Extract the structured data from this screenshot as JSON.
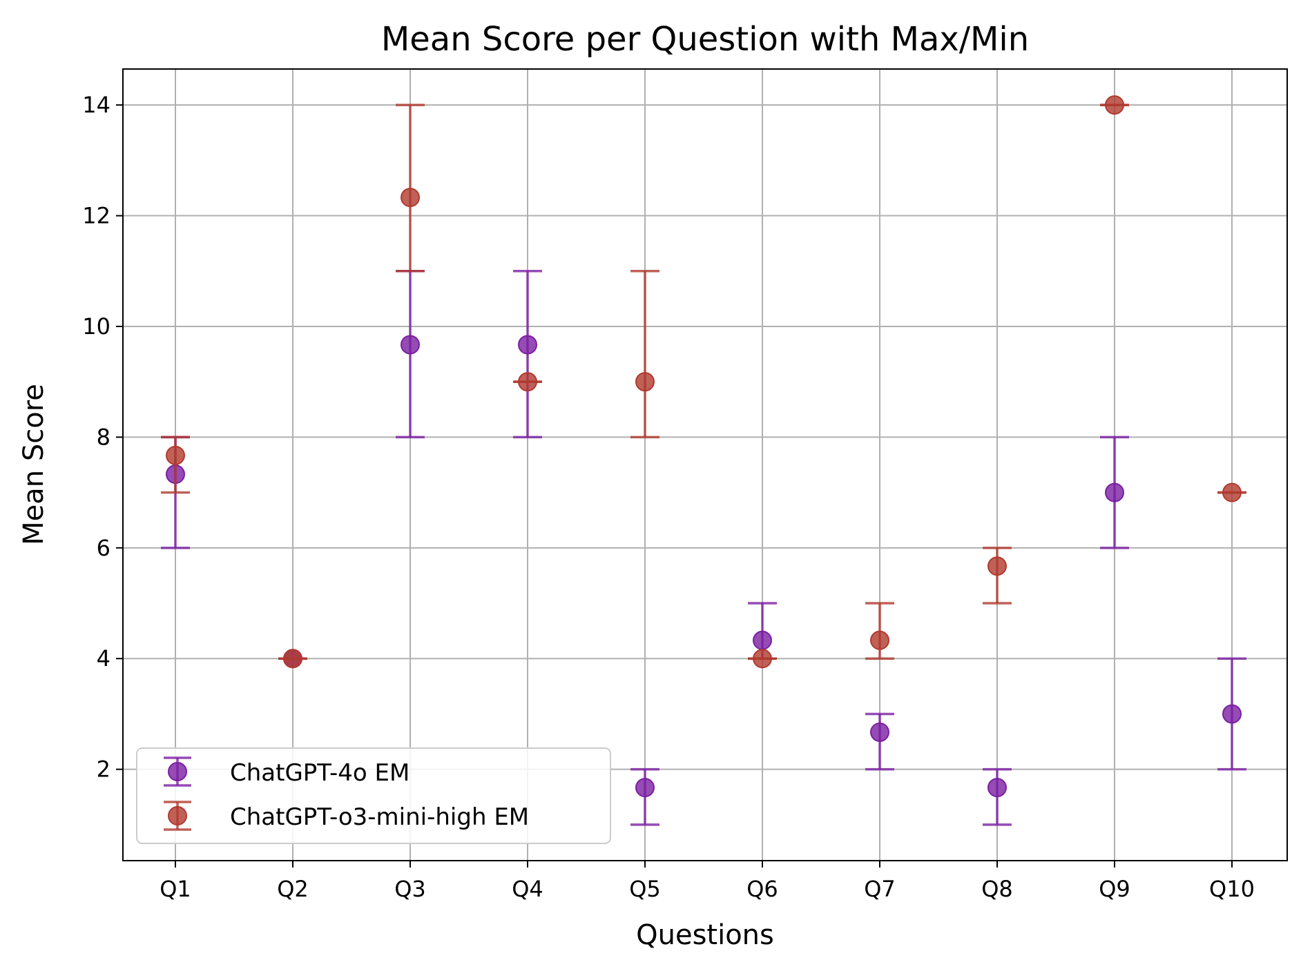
{
  "chart_data": {
    "type": "scatter",
    "title": "Mean Score per Question with Max/Min",
    "xlabel": "Questions",
    "ylabel": "Mean Score",
    "categories": [
      "Q1",
      "Q2",
      "Q3",
      "Q4",
      "Q5",
      "Q6",
      "Q7",
      "Q8",
      "Q9",
      "Q10"
    ],
    "ylim": [
      0.35,
      14.65
    ],
    "yticks": [
      2,
      4,
      6,
      8,
      10,
      12,
      14
    ],
    "ytick_labels": [
      "2",
      "4",
      "6",
      "8",
      "10",
      "12",
      "14"
    ],
    "grid": true,
    "legend_position": "lower-left",
    "series": [
      {
        "name": "ChatGPT-4o EM",
        "color": "#7b1fa2",
        "mean": [
          7.33,
          4.0,
          9.67,
          9.67,
          1.67,
          4.33,
          2.67,
          1.67,
          7.0,
          3.0
        ],
        "max": [
          8,
          4,
          11,
          11,
          2,
          5,
          3,
          2,
          8,
          4
        ],
        "min": [
          6,
          4,
          8,
          8,
          1,
          4,
          2,
          1,
          6,
          2
        ]
      },
      {
        "name": "ChatGPT-o3-mini-high EM",
        "color": "#b03a2e",
        "mean": [
          7.67,
          4.0,
          12.33,
          9.0,
          9.0,
          4.0,
          4.33,
          5.67,
          14.0,
          7.0
        ],
        "max": [
          8,
          4,
          14,
          9,
          11,
          4,
          5,
          6,
          14,
          7
        ],
        "min": [
          7,
          4,
          11,
          9,
          8,
          4,
          4,
          5,
          14,
          7
        ]
      }
    ]
  }
}
